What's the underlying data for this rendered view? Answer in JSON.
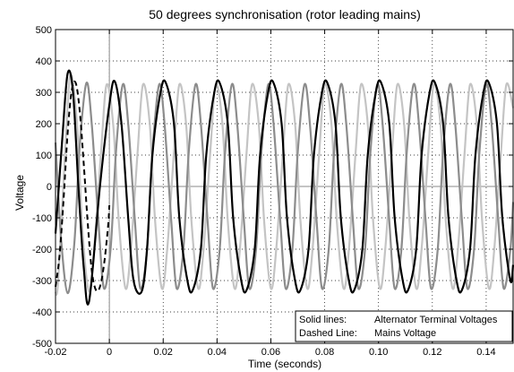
{
  "chart_data": {
    "type": "line",
    "title": "50 degrees synchronisation (rotor leading mains)",
    "xlabel": "Time (seconds)",
    "ylabel": "Voltage",
    "xlim": [
      -0.02,
      0.15
    ],
    "ylim": [
      -500,
      500
    ],
    "xticks": [
      -0.02,
      0,
      0.02,
      0.04,
      0.06,
      0.08,
      0.1,
      0.12,
      0.14
    ],
    "xtick_labels": [
      "-0.02",
      "0",
      "0.02",
      "0.04",
      "0.06",
      "0.08",
      "0.10",
      "0.12",
      "0.14"
    ],
    "yticks": [
      -500,
      -400,
      -300,
      -200,
      -100,
      0,
      100,
      200,
      300,
      400,
      500
    ],
    "ytick_labels": [
      "-500",
      "-400",
      "-300",
      "-200",
      "-100",
      "0",
      "100",
      "200",
      "300",
      "400",
      "500"
    ],
    "grid": true,
    "grid_style": "dotted",
    "legend_position": "bottom-right",
    "legend": [
      {
        "key": "Solid lines:",
        "text": "Alternator Terminal Voltages"
      },
      {
        "key": "Dashed Line:",
        "text": "Mains Voltage"
      }
    ],
    "series": [
      {
        "style": "solid",
        "color": "#000000",
        "x": [
          -0.02,
          -0.0175,
          -0.0155,
          -0.0135,
          -0.0115,
          -0.0095,
          -0.0075,
          -0.0035,
          0.0,
          0.002,
          0.0045,
          0.007,
          0.009,
          0.012,
          0.014,
          0.016,
          0.019,
          0.021,
          0.024,
          0.026,
          0.029,
          0.031,
          0.034,
          0.036,
          0.039,
          0.041,
          0.044,
          0.046,
          0.049,
          0.051,
          0.054,
          0.056,
          0.059,
          0.061,
          0.064,
          0.066,
          0.069,
          0.071,
          0.074,
          0.076,
          0.079,
          0.081,
          0.084,
          0.086,
          0.089,
          0.091,
          0.094,
          0.096,
          0.099,
          0.101,
          0.104,
          0.106,
          0.109,
          0.111,
          0.114,
          0.116,
          0.119,
          0.121,
          0.124,
          0.126,
          0.129,
          0.131,
          0.134,
          0.136,
          0.139,
          0.141,
          0.144,
          0.146,
          0.149,
          0.15
        ],
        "y": [
          -150,
          150,
          360,
          300,
          0,
          -260,
          -365,
          0,
          260,
          335,
          200,
          -100,
          -300,
          -335,
          -200,
          100,
          300,
          330,
          200,
          -100,
          -300,
          -330,
          -200,
          100,
          300,
          330,
          200,
          -100,
          -300,
          -330,
          -200,
          100,
          300,
          330,
          200,
          -100,
          -300,
          -330,
          -200,
          100,
          300,
          330,
          200,
          -100,
          -300,
          -330,
          -200,
          100,
          300,
          330,
          200,
          -100,
          -300,
          -330,
          -200,
          100,
          300,
          330,
          200,
          -100,
          -300,
          -330,
          -200,
          100,
          300,
          330,
          200,
          -100,
          -300,
          -250
        ]
      },
      {
        "style": "solid",
        "color": "#8c8c8c",
        "x": [
          -0.02,
          -0.018,
          -0.0155,
          -0.013,
          -0.011,
          -0.0085,
          -0.0065,
          -0.004,
          -0.002,
          0.0005,
          0.0025,
          0.005,
          0.007,
          0.0095,
          0.0115,
          0.014,
          0.016,
          0.0185,
          0.0205,
          0.023,
          0.025,
          0.0275,
          0.0295,
          0.032,
          0.034,
          0.0365,
          0.0385,
          0.041,
          0.043,
          0.0455,
          0.0475,
          0.05,
          0.052,
          0.0545,
          0.0565,
          0.059,
          0.061,
          0.0635,
          0.0655,
          0.068,
          0.07,
          0.0725,
          0.0745,
          0.077,
          0.079,
          0.0815,
          0.0835,
          0.086,
          0.088,
          0.0905,
          0.0925,
          0.095,
          0.097,
          0.0995,
          0.1015,
          0.104,
          0.106,
          0.1085,
          0.1105,
          0.113,
          0.115,
          0.1175,
          0.1195,
          0.122,
          0.124,
          0.1265,
          0.1285,
          0.131,
          0.133,
          0.1355,
          0.1375,
          0.14,
          0.142,
          0.1445,
          0.1465,
          0.149,
          0.15
        ],
        "y": [
          140,
          -160,
          -340,
          -180,
          130,
          330,
          195,
          -120,
          -325,
          -195,
          115,
          325,
          200,
          -110,
          -325,
          -200,
          110,
          325,
          200,
          -110,
          -325,
          -200,
          110,
          325,
          200,
          -110,
          -325,
          -200,
          110,
          325,
          200,
          -110,
          -325,
          -200,
          110,
          325,
          200,
          -110,
          -325,
          -200,
          110,
          325,
          200,
          -110,
          -325,
          -200,
          110,
          325,
          200,
          -110,
          -325,
          -200,
          110,
          325,
          200,
          -110,
          -325,
          -200,
          110,
          325,
          200,
          -110,
          -325,
          -200,
          110,
          325,
          200,
          -110,
          -325,
          -200,
          110,
          325,
          200,
          -110,
          -325,
          -200,
          -50
        ]
      },
      {
        "style": "solid",
        "color": "#c4c4c4",
        "x": [
          -0.02,
          -0.019,
          -0.0165,
          -0.0145,
          -0.012,
          -0.01,
          -0.0075,
          -0.0055,
          -0.003,
          -0.001,
          0.0015,
          0.0035,
          0.006,
          0.008,
          0.0105,
          0.0125,
          0.015,
          0.017,
          0.0195,
          0.0215,
          0.024,
          0.026,
          0.0285,
          0.0305,
          0.033,
          0.035,
          0.0375,
          0.0395,
          0.042,
          0.044,
          0.0465,
          0.0485,
          0.051,
          0.053,
          0.0555,
          0.0575,
          0.06,
          0.062,
          0.0645,
          0.0665,
          0.069,
          0.071,
          0.0735,
          0.0755,
          0.078,
          0.08,
          0.0825,
          0.0845,
          0.087,
          0.089,
          0.0915,
          0.0935,
          0.096,
          0.098,
          0.1005,
          0.1025,
          0.105,
          0.107,
          0.1095,
          0.1115,
          0.114,
          0.116,
          0.1185,
          0.1205,
          0.123,
          0.125,
          0.1275,
          0.1295,
          0.132,
          0.134,
          0.1365,
          0.1385,
          0.141,
          0.143,
          0.1455,
          0.1475,
          0.15
        ],
        "y": [
          -340,
          -300,
          100,
          355,
          200,
          -140,
          -335,
          -180,
          120,
          325,
          190,
          -110,
          -325,
          -200,
          110,
          325,
          200,
          -110,
          -325,
          -200,
          110,
          325,
          200,
          -110,
          -325,
          -200,
          110,
          325,
          200,
          -110,
          -325,
          -200,
          110,
          325,
          200,
          -110,
          -325,
          -200,
          110,
          325,
          200,
          -110,
          -325,
          -200,
          110,
          325,
          200,
          -110,
          -325,
          -200,
          110,
          325,
          200,
          -110,
          -325,
          -200,
          110,
          325,
          200,
          -110,
          -325,
          -200,
          110,
          325,
          200,
          -110,
          -325,
          -200,
          110,
          325,
          200,
          -110,
          -325,
          -200,
          110,
          325,
          250
        ]
      },
      {
        "style": "dashed",
        "color": "#000000",
        "x": [
          -0.02,
          -0.0185,
          -0.017,
          -0.0155,
          -0.014,
          -0.0125,
          -0.011,
          -0.0095,
          -0.008,
          -0.0065,
          -0.005,
          -0.0035,
          -0.002,
          -0.0005,
          0.0
        ],
        "y": [
          -320,
          -220,
          -40,
          170,
          305,
          330,
          240,
          70,
          -120,
          -270,
          -330,
          -320,
          -250,
          -130,
          -60
        ]
      }
    ]
  }
}
